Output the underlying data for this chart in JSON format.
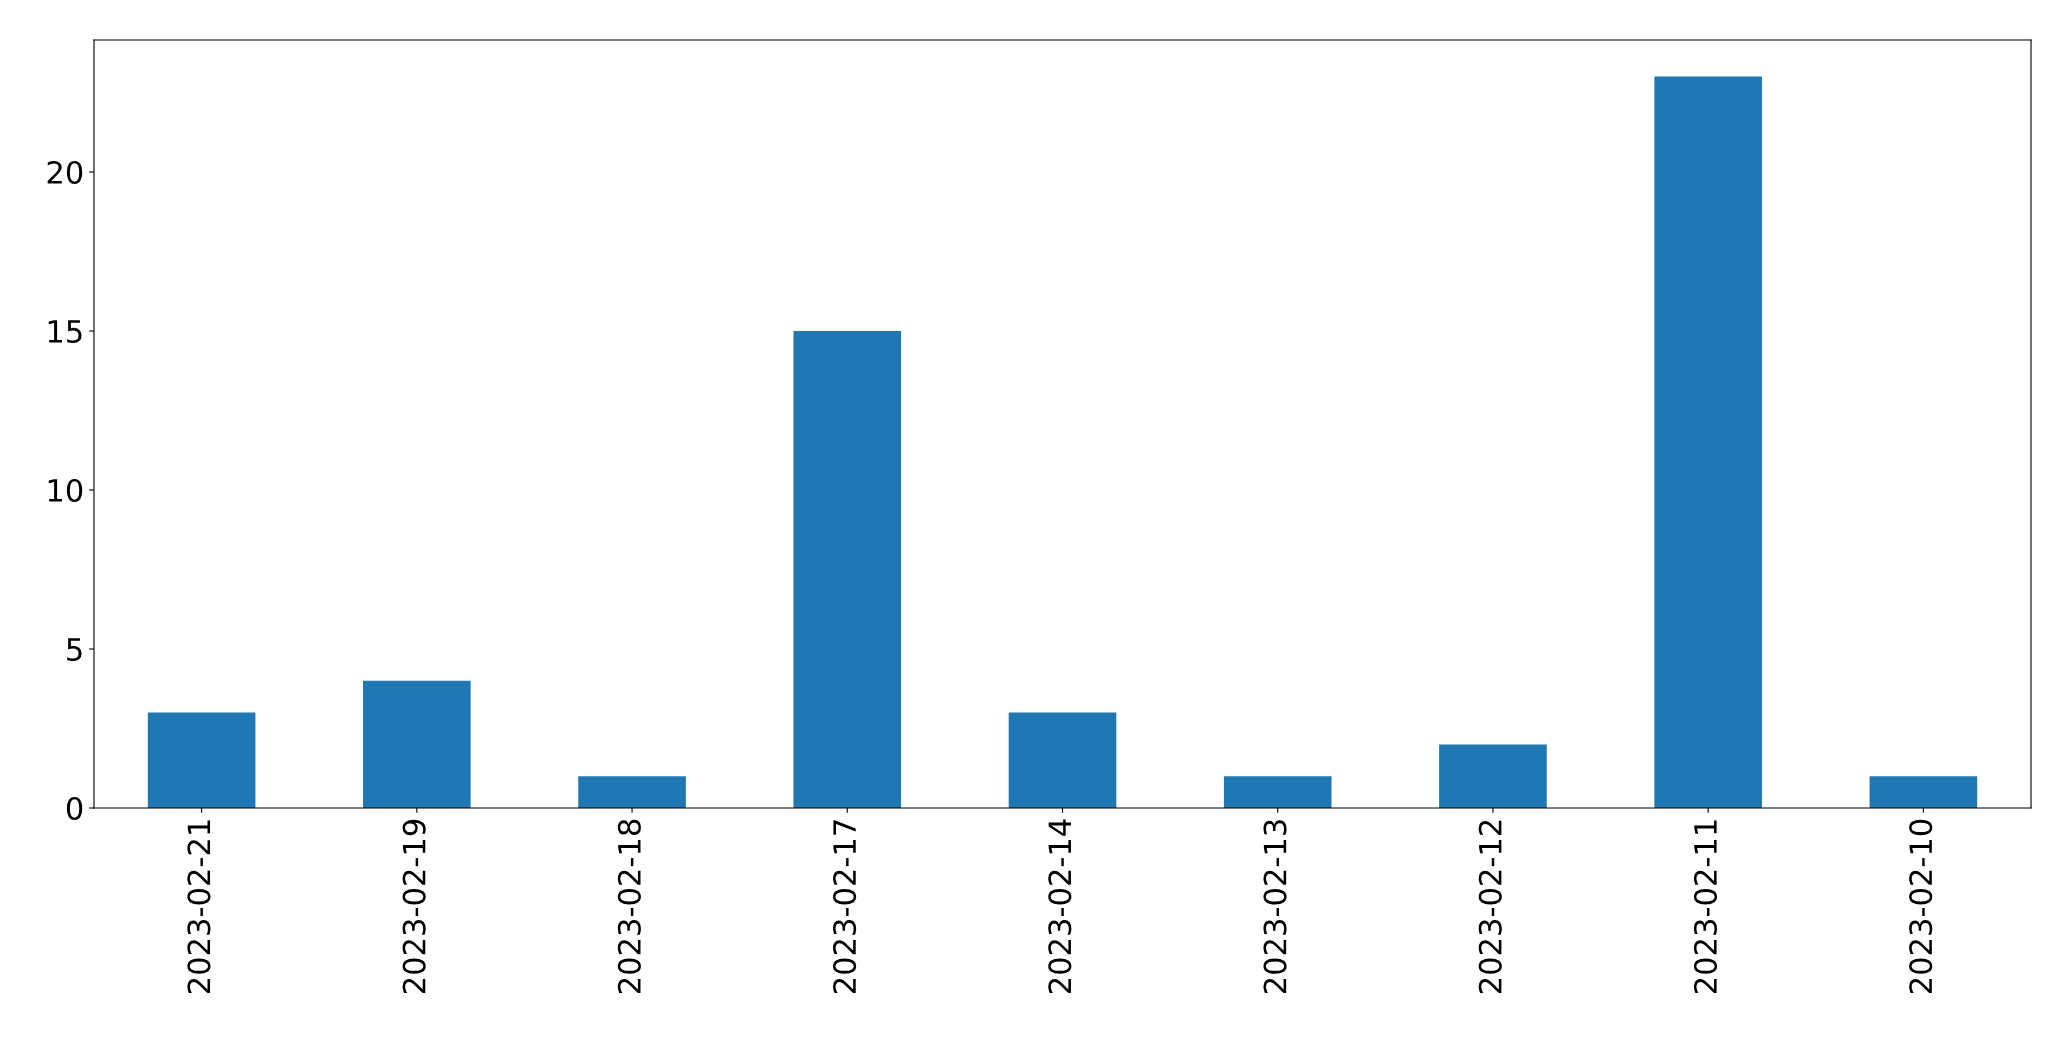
{
  "chart_data": {
    "type": "bar",
    "categories": [
      "2023-02-21",
      "2023-02-19",
      "2023-02-18",
      "2023-02-17",
      "2023-02-14",
      "2023-02-13",
      "2023-02-12",
      "2023-02-11",
      "2023-02-10"
    ],
    "values": [
      3,
      4,
      1,
      15,
      3,
      1,
      2,
      23,
      1
    ],
    "color": "#1f77b4",
    "ylim": [
      0,
      24.15
    ],
    "yticks": [
      0,
      5,
      10,
      15,
      20
    ],
    "grid": false,
    "legend": false
  }
}
